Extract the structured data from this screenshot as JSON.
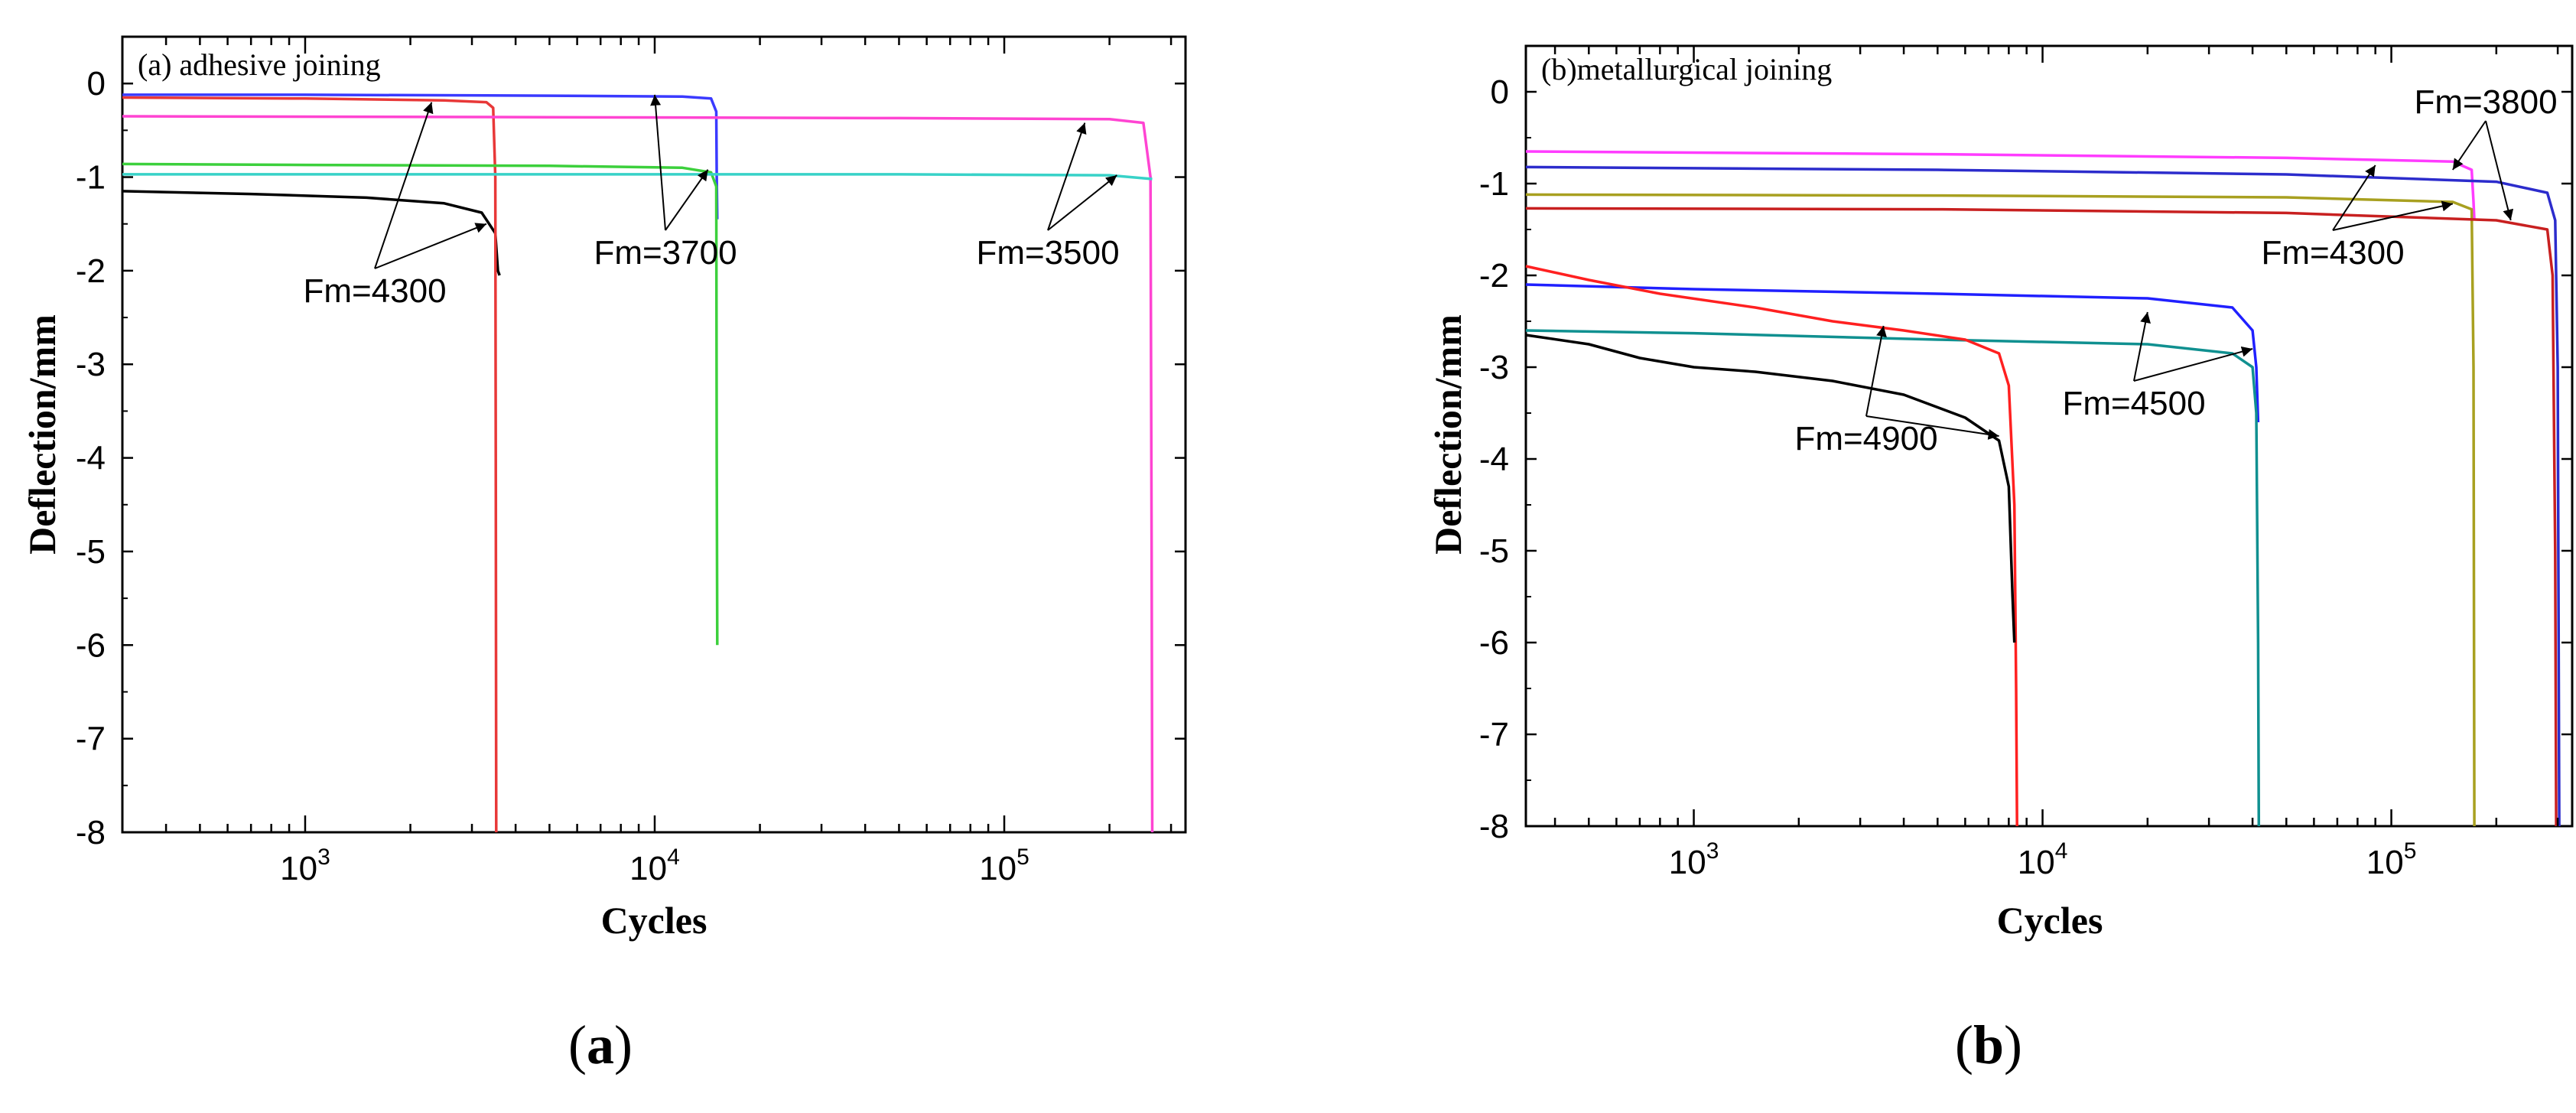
{
  "figure": {
    "captions": [
      {
        "open": "(",
        "letter": "a",
        "close": ")"
      },
      {
        "open": "(",
        "letter": "b",
        "close": ")"
      }
    ]
  },
  "chart_data": [
    {
      "type": "line",
      "title": "(a) adhesive joining",
      "xlabel": "Cycles",
      "ylabel": "Deflection/mm",
      "xscale": "log",
      "xlim": [
        300,
        330000
      ],
      "ylim": [
        -8,
        0.5
      ],
      "yticks": [
        0,
        -1,
        -2,
        -3,
        -4,
        -5,
        -6,
        -7,
        -8
      ],
      "xticks": [
        {
          "base": "10",
          "exp": "3",
          "value": 1000
        },
        {
          "base": "10",
          "exp": "4",
          "value": 10000
        },
        {
          "base": "10",
          "exp": "5",
          "value": 100000
        }
      ],
      "series": [
        {
          "name": "Fm=4300 (black)",
          "color": "#000000",
          "x": [
            300,
            700,
            1500,
            2500,
            3200,
            3500,
            3560,
            3600
          ],
          "y": [
            -1.15,
            -1.18,
            -1.22,
            -1.28,
            -1.38,
            -1.6,
            -2.0,
            -2.05
          ]
        },
        {
          "name": "Fm=4300 (red)",
          "color": "#e83838",
          "x": [
            300,
            1000,
            2500,
            3300,
            3450,
            3500,
            3510,
            3520
          ],
          "y": [
            -0.15,
            -0.16,
            -0.18,
            -0.2,
            -0.26,
            -1.0,
            -4.0,
            -8.0
          ]
        },
        {
          "name": "Fm=3700 (blue)",
          "color": "#3a3aff",
          "x": [
            300,
            1000,
            5000,
            12000,
            14500,
            15000,
            15050,
            15100
          ],
          "y": [
            -0.12,
            -0.12,
            -0.13,
            -0.14,
            -0.16,
            -0.3,
            -1.0,
            -1.45
          ]
        },
        {
          "name": "Fm=3700 (green)",
          "color": "#3cd03c",
          "x": [
            300,
            1000,
            5000,
            12000,
            14500,
            15000,
            15050,
            15100
          ],
          "y": [
            -0.86,
            -0.87,
            -0.88,
            -0.9,
            -0.95,
            -1.1,
            -4.0,
            -6.0
          ]
        },
        {
          "name": "Fm=3500 (magenta)",
          "color": "#ff44d2",
          "x": [
            300,
            5000,
            50000,
            200000,
            250000,
            262000,
            264000,
            265000
          ],
          "y": [
            -0.35,
            -0.36,
            -0.37,
            -0.38,
            -0.42,
            -1.0,
            -5.0,
            -8.0
          ]
        },
        {
          "name": "Fm=3500 (cyan)",
          "color": "#38d2c8",
          "x": [
            300,
            5000,
            50000,
            200000,
            265000
          ],
          "y": [
            -0.97,
            -0.97,
            -0.97,
            -0.98,
            -1.02
          ]
        }
      ],
      "annotations": [
        {
          "text": "Fm=4300",
          "arrows_to": [
            {
              "x": 2300,
              "y": -0.2
            },
            {
              "x": 3300,
              "y": -1.5
            }
          ]
        },
        {
          "text": "Fm=3700",
          "arrows_to": [
            {
              "x": 10000,
              "y": -0.12
            },
            {
              "x": 14200,
              "y": -0.92
            }
          ]
        },
        {
          "text": "Fm=3500",
          "arrows_to": [
            {
              "x": 170000,
              "y": -0.42
            },
            {
              "x": 210000,
              "y": -0.98
            }
          ]
        }
      ]
    },
    {
      "type": "line",
      "title": "(b)metallurgical joining",
      "xlabel": "Cycles",
      "ylabel": "Deflection/mm",
      "xscale": "log",
      "xlim": [
        330,
        330000
      ],
      "ylim": [
        -8,
        0.5
      ],
      "yticks": [
        0,
        -1,
        -2,
        -3,
        -4,
        -5,
        -6,
        -7,
        -8
      ],
      "xticks": [
        {
          "base": "10",
          "exp": "3",
          "value": 1000
        },
        {
          "base": "10",
          "exp": "4",
          "value": 10000
        },
        {
          "base": "10",
          "exp": "5",
          "value": 100000
        }
      ],
      "series": [
        {
          "name": "Fm=3800 (magenta)",
          "color": "#ff3cff",
          "x": [
            330,
            5000,
            50000,
            150000,
            170000,
            172000,
            173000
          ],
          "y": [
            -0.65,
            -0.68,
            -0.72,
            -0.76,
            -0.85,
            -1.2,
            -1.4
          ]
        },
        {
          "name": "Fm=3800 (blue)",
          "color": "#2c2ccc",
          "x": [
            330,
            5000,
            50000,
            200000,
            280000,
            295000,
            300000,
            303000
          ],
          "y": [
            -0.82,
            -0.85,
            -0.9,
            -0.98,
            -1.1,
            -1.4,
            -3.0,
            -8.0
          ]
        },
        {
          "name": "Fm=4300 (olive)",
          "color": "#a8a020",
          "x": [
            330,
            5000,
            50000,
            150000,
            170000,
            172000,
            173000
          ],
          "y": [
            -1.12,
            -1.13,
            -1.15,
            -1.2,
            -1.28,
            -3.0,
            -8.0
          ]
        },
        {
          "name": "Fm=4300 (red)",
          "color": "#c82020",
          "x": [
            330,
            5000,
            50000,
            200000,
            280000,
            290000,
            295000,
            297000
          ],
          "y": [
            -1.27,
            -1.28,
            -1.32,
            -1.4,
            -1.5,
            -2.0,
            -5.0,
            -8.0
          ]
        },
        {
          "name": "Fm=4500 (blue)",
          "color": "#2020ff",
          "x": [
            330,
            1000,
            5000,
            20000,
            35000,
            40000,
            41000,
            41500
          ],
          "y": [
            -2.1,
            -2.15,
            -2.2,
            -2.25,
            -2.35,
            -2.6,
            -3.0,
            -3.6
          ]
        },
        {
          "name": "Fm=4500 (teal)",
          "color": "#109090",
          "x": [
            330,
            1000,
            5000,
            20000,
            35000,
            40000,
            41000,
            41500,
            41700
          ],
          "y": [
            -2.6,
            -2.63,
            -2.7,
            -2.75,
            -2.85,
            -3.0,
            -3.5,
            -6.0,
            -8.0
          ]
        },
        {
          "name": "Fm=4900 (red)",
          "color": "#ff2020",
          "x": [
            330,
            500,
            800,
            1500,
            2500,
            4000,
            6000,
            7500,
            8000,
            8300,
            8400,
            8450
          ],
          "y": [
            -1.9,
            -2.05,
            -2.2,
            -2.35,
            -2.5,
            -2.6,
            -2.7,
            -2.85,
            -3.2,
            -4.5,
            -6.5,
            -8.0
          ]
        },
        {
          "name": "Fm=4900 (black)",
          "color": "#000000",
          "x": [
            330,
            500,
            700,
            1000,
            1500,
            2500,
            4000,
            6000,
            7500,
            8000,
            8200,
            8300
          ],
          "y": [
            -2.65,
            -2.75,
            -2.9,
            -3.0,
            -3.05,
            -3.15,
            -3.3,
            -3.55,
            -3.8,
            -4.3,
            -5.5,
            -6.0
          ]
        }
      ],
      "annotations": [
        {
          "text": "Fm=3800",
          "arrows_to": [
            {
              "x": 150000,
              "y": -0.85
            },
            {
              "x": 220000,
              "y": -1.4
            }
          ]
        },
        {
          "text": "Fm=4300",
          "arrows_to": [
            {
              "x": 90000,
              "y": -0.8
            },
            {
              "x": 150000,
              "y": -1.22
            }
          ]
        },
        {
          "text": "Fm=4500",
          "arrows_to": [
            {
              "x": 20000,
              "y": -2.4
            },
            {
              "x": 40000,
              "y": -2.8
            }
          ]
        },
        {
          "text": "Fm=4900",
          "arrows_to": [
            {
              "x": 3500,
              "y": -2.55
            },
            {
              "x": 7500,
              "y": -3.75
            }
          ]
        }
      ]
    }
  ]
}
